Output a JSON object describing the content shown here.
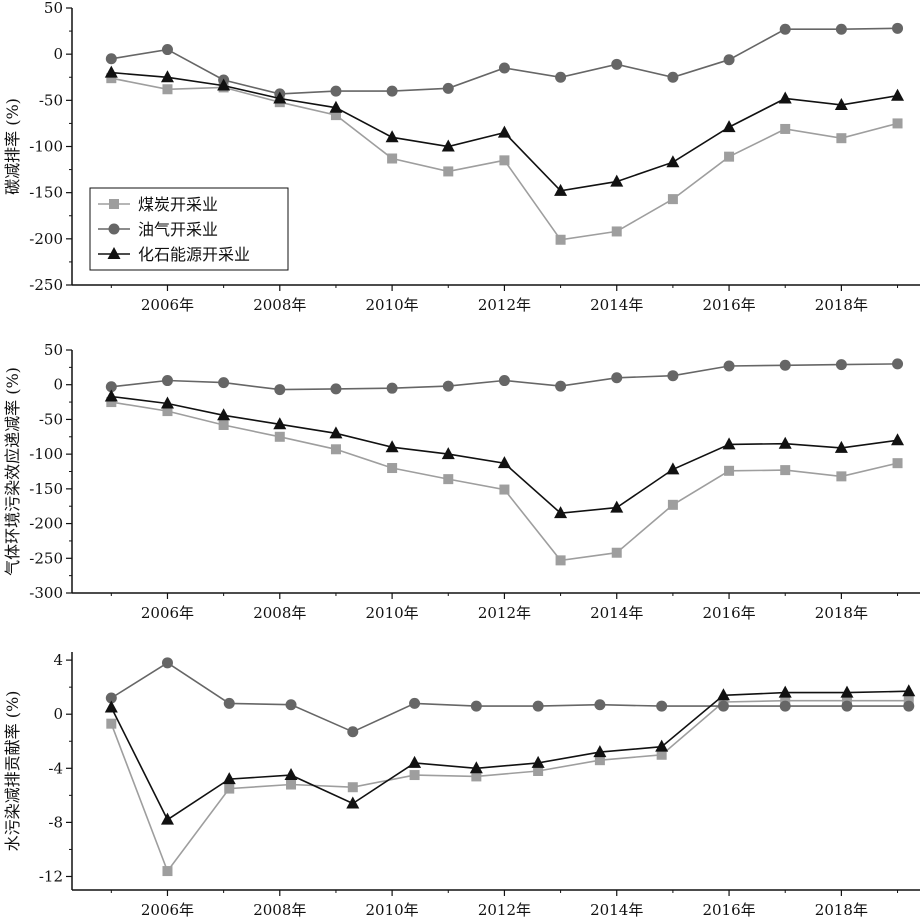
{
  "chart_data": [
    {
      "type": "line",
      "ylabel": "碳减排率 (%)",
      "ylim": [
        -250,
        50
      ],
      "yticks": [
        50,
        0,
        -50,
        -100,
        -150,
        -200,
        -250
      ],
      "xlim": [
        2004.3,
        2019.4
      ],
      "xticks": [
        2006,
        2008,
        2010,
        2012,
        2014,
        2016,
        2018
      ],
      "xtick_labels": [
        "2006年",
        "2008年",
        "2010年",
        "2012年",
        "2014年",
        "2016年",
        "2018年"
      ],
      "grid": false,
      "legend_position": "bottom-left",
      "x": [
        2005,
        2006,
        2007,
        2008,
        2009,
        2010,
        2011,
        2012,
        2013,
        2014,
        2015,
        2016,
        2017,
        2018,
        2019
      ],
      "series": [
        {
          "name": "煤炭开采业",
          "marker": "square",
          "color": "#9e9e9e",
          "values": [
            -26,
            -38,
            -36,
            -52,
            -66,
            -113,
            -127,
            -115,
            -201,
            -192,
            -157,
            -111,
            -81,
            -91,
            -75
          ]
        },
        {
          "name": "油气开采业",
          "marker": "circle",
          "color": "#666666",
          "values": [
            -5,
            5,
            -28,
            -43,
            -40,
            -40,
            -37,
            -15,
            -25,
            -11,
            -25,
            -6,
            27,
            27,
            28
          ]
        },
        {
          "name": "化石能源开采业",
          "marker": "triangle",
          "color": "#111111",
          "values": [
            -20,
            -25,
            -34,
            -48,
            -58,
            -90,
            -100,
            -85,
            -148,
            -138,
            -117,
            -79,
            -48,
            -55,
            -45
          ]
        }
      ]
    },
    {
      "type": "line",
      "ylabel": "气体环境污染效应递减率 (%)",
      "ylim": [
        -300,
        50
      ],
      "yticks": [
        50,
        0,
        -50,
        -100,
        -150,
        -200,
        -250,
        -300
      ],
      "xlim": [
        2004.3,
        2019.4
      ],
      "xticks": [
        2006,
        2008,
        2010,
        2012,
        2014,
        2016,
        2018
      ],
      "xtick_labels": [
        "2006年",
        "2008年",
        "2010年",
        "2012年",
        "2014年",
        "2016年",
        "2018年"
      ],
      "grid": false,
      "x": [
        2005,
        2006,
        2007,
        2008,
        2009,
        2010,
        2011,
        2012,
        2013,
        2014,
        2015,
        2016,
        2017,
        2018,
        2019
      ],
      "series": [
        {
          "name": "煤炭开采业",
          "marker": "square",
          "color": "#9e9e9e",
          "values": [
            -25,
            -38,
            -58,
            -75,
            -93,
            -120,
            -136,
            -151,
            -253,
            -242,
            -173,
            -124,
            -123,
            -132,
            -113
          ]
        },
        {
          "name": "油气开采业",
          "marker": "circle",
          "color": "#666666",
          "values": [
            -3,
            6,
            3,
            -7,
            -6,
            -5,
            -2,
            6,
            -2,
            10,
            13,
            27,
            28,
            29,
            30
          ]
        },
        {
          "name": "化石能源开采业",
          "marker": "triangle",
          "color": "#111111",
          "values": [
            -17,
            -27,
            -44,
            -57,
            -70,
            -90,
            -100,
            -113,
            -185,
            -177,
            -122,
            -86,
            -85,
            -91,
            -80
          ]
        }
      ]
    },
    {
      "type": "line",
      "ylabel": "水污染减排贡献率 (%)",
      "ylim": [
        -13,
        4.6
      ],
      "yticks": [
        4,
        0,
        -4,
        -8,
        -12
      ],
      "xlim": [
        2004.3,
        2019.4
      ],
      "xticks": [
        2006,
        2008,
        2010,
        2012,
        2014,
        2016,
        2018
      ],
      "xtick_labels": [
        "2006年",
        "2008年",
        "2010年",
        "2012年",
        "2014年",
        "2016年",
        "2018年"
      ],
      "grid": false,
      "x": [
        2005,
        2006,
        2007.1,
        2008.2,
        2009.3,
        2010.4,
        2011.5,
        2012.6,
        2013.7,
        2014.8,
        2015.9,
        2017,
        2018.1,
        2019.2
      ],
      "series": [
        {
          "name": "煤炭开采业",
          "marker": "square",
          "color": "#9e9e9e",
          "values": [
            -0.7,
            -11.6,
            -5.5,
            -5.2,
            -5.4,
            -4.5,
            -4.6,
            -4.2,
            -3.4,
            -3.0,
            0.9,
            1.0,
            1.0,
            1.0
          ]
        },
        {
          "name": "油气开采业",
          "marker": "circle",
          "color": "#666666",
          "values": [
            1.2,
            3.8,
            0.8,
            0.7,
            -1.3,
            0.8,
            0.6,
            0.6,
            0.7,
            0.6,
            0.6,
            0.6,
            0.6,
            0.6
          ]
        },
        {
          "name": "化石能源开采业",
          "marker": "triangle",
          "color": "#111111",
          "values": [
            0.5,
            -7.8,
            -4.8,
            -4.5,
            -6.6,
            -3.6,
            -4.0,
            -3.6,
            -2.8,
            -2.4,
            1.4,
            1.6,
            1.6,
            1.7
          ]
        }
      ]
    }
  ]
}
